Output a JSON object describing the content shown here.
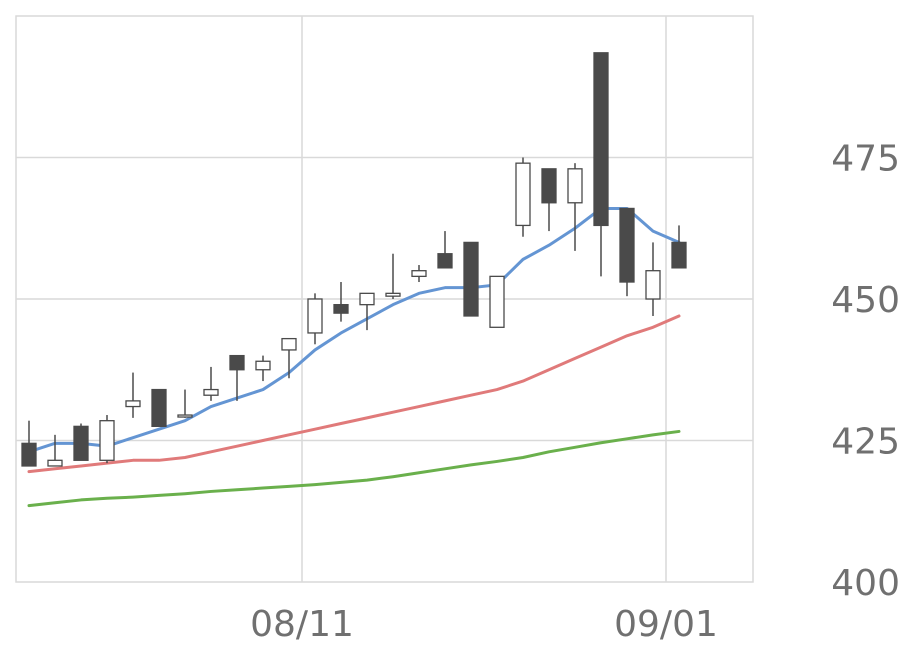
{
  "chart_data": {
    "type": "candlestick",
    "grid": true,
    "ylim": [
      400,
      500
    ],
    "y_ticks": [
      "400",
      "425",
      "450",
      "475"
    ],
    "x_ticks": [
      {
        "label": "08/11",
        "index": 10.5
      },
      {
        "label": "09/01",
        "index": 24.5
      }
    ],
    "candles": [
      {
        "open": 424.5,
        "high": 428.5,
        "low": 420.5,
        "close": 420.5
      },
      {
        "open": 420.5,
        "high": 426.0,
        "low": 420.5,
        "close": 421.5
      },
      {
        "open": 427.5,
        "high": 428.0,
        "low": 421.5,
        "close": 421.5
      },
      {
        "open": 421.5,
        "high": 429.5,
        "low": 421.0,
        "close": 428.5
      },
      {
        "open": 431.0,
        "high": 437.0,
        "low": 429.0,
        "close": 432.0
      },
      {
        "open": 434.0,
        "high": 434.0,
        "low": 427.5,
        "close": 427.5
      },
      {
        "open": 429.5,
        "high": 434.0,
        "low": 429.0,
        "close": 429.5
      },
      {
        "open": 433.0,
        "high": 438.0,
        "low": 432.0,
        "close": 434.0
      },
      {
        "open": 440.0,
        "high": 440.0,
        "low": 432.0,
        "close": 437.5
      },
      {
        "open": 437.5,
        "high": 440.0,
        "low": 435.5,
        "close": 439.0
      },
      {
        "open": 441.0,
        "high": 443.0,
        "low": 436.0,
        "close": 443.0
      },
      {
        "open": 444.0,
        "high": 451.0,
        "low": 442.0,
        "close": 450.0
      },
      {
        "open": 449.0,
        "high": 453.0,
        "low": 446.0,
        "close": 447.5
      },
      {
        "open": 449.0,
        "high": 451.0,
        "low": 444.5,
        "close": 451.0
      },
      {
        "open": 450.5,
        "high": 458.0,
        "low": 450.0,
        "close": 451.0
      },
      {
        "open": 454.0,
        "high": 456.0,
        "low": 453.0,
        "close": 455.0
      },
      {
        "open": 458.0,
        "high": 462.0,
        "low": 455.5,
        "close": 455.5
      },
      {
        "open": 460.0,
        "high": 460.0,
        "low": 447.0,
        "close": 447.0
      },
      {
        "open": 445.0,
        "high": 454.0,
        "low": 445.0,
        "close": 454.0
      },
      {
        "open": 463.0,
        "high": 475.0,
        "low": 461.0,
        "close": 474.0
      },
      {
        "open": 473.0,
        "high": 473.0,
        "low": 462.0,
        "close": 467.0
      },
      {
        "open": 467.0,
        "high": 474.0,
        "low": 458.5,
        "close": 473.0
      },
      {
        "open": 493.5,
        "high": 493.5,
        "low": 454.0,
        "close": 463.0
      },
      {
        "open": 466.0,
        "high": 466.0,
        "low": 450.5,
        "close": 453.0
      },
      {
        "open": 450.0,
        "high": 460.0,
        "low": 447.0,
        "close": 455.0
      },
      {
        "open": 460.0,
        "high": 463.0,
        "low": 455.5,
        "close": 455.5
      }
    ],
    "series": [
      {
        "color": "#6495d3",
        "values": [
          423.0,
          424.5,
          424.5,
          424.0,
          425.5,
          427.0,
          428.5,
          431.0,
          432.5,
          434.0,
          437.0,
          441.0,
          444.0,
          446.5,
          449.0,
          451.0,
          452.0,
          452.0,
          452.5,
          457.0,
          459.5,
          462.5,
          466.0,
          466.0,
          462.0,
          460.0
        ]
      },
      {
        "color": "#e07a7a",
        "values": [
          419.5,
          420.0,
          420.5,
          421.0,
          421.5,
          421.5,
          422.0,
          423.0,
          424.0,
          425.0,
          426.0,
          427.0,
          428.0,
          429.0,
          430.0,
          431.0,
          432.0,
          433.0,
          434.0,
          435.5,
          437.5,
          439.5,
          441.5,
          443.5,
          445.0,
          447.0
        ]
      },
      {
        "color": "#6ab04c",
        "values": [
          413.5,
          414.0,
          414.5,
          414.8,
          415.0,
          415.3,
          415.6,
          416.0,
          416.3,
          416.6,
          416.9,
          417.2,
          417.6,
          418.0,
          418.6,
          419.3,
          420.0,
          420.7,
          421.3,
          422.0,
          423.0,
          423.8,
          424.6,
          425.3,
          426.0,
          426.6
        ]
      }
    ],
    "colors": {
      "up_candle_fill": "#ffffff",
      "down_candle_fill": "#4a4a4a",
      "candle_stroke": "#4a4a4a",
      "grid": "#d9d9d9",
      "tick_text": "#707070"
    }
  }
}
